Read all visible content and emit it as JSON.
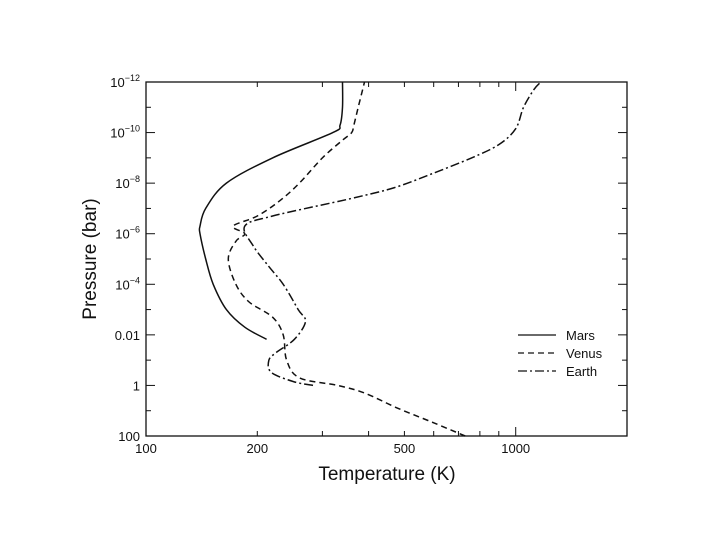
{
  "chart_data": {
    "type": "line",
    "title": "",
    "xlabel": "Temperature  (K)",
    "ylabel": "Pressure  (bar)",
    "x_scale": "log",
    "y_scale": "log",
    "xlim": [
      100,
      2000
    ],
    "ylim": [
      1e-12,
      100
    ],
    "y_inverted": true,
    "grid": false,
    "legend_position": "bottom-right",
    "x_ticks": [
      {
        "value": 100,
        "label": "100"
      },
      {
        "value": 200,
        "label": "200"
      },
      {
        "value": 500,
        "label": "500"
      },
      {
        "value": 1000,
        "label": "1000"
      }
    ],
    "y_ticks": [
      {
        "value": 1e-12,
        "base": "10",
        "exp": "−12"
      },
      {
        "value": 1e-10,
        "base": "10",
        "exp": "−10"
      },
      {
        "value": 1e-08,
        "base": "10",
        "exp": "−8"
      },
      {
        "value": 1e-06,
        "base": "10",
        "exp": "−6"
      },
      {
        "value": 0.0001,
        "base": "10",
        "exp": "−4"
      },
      {
        "value": 0.01,
        "base": "0.01",
        "exp": ""
      },
      {
        "value": 1,
        "base": "1",
        "exp": ""
      },
      {
        "value": 100,
        "base": "100",
        "exp": ""
      }
    ],
    "series": [
      {
        "name": "Mars",
        "dash": "solid",
        "points": [
          [
            212,
            0.015
          ],
          [
            185,
            0.005
          ],
          [
            165,
            0.001
          ],
          [
            152,
            0.0001
          ],
          [
            145,
            1e-05
          ],
          [
            140,
            1e-06
          ],
          [
            140,
            5e-07
          ],
          [
            145,
            1e-07
          ],
          [
            165,
            1e-08
          ],
          [
            220,
            1e-09
          ],
          [
            320,
            1e-10
          ],
          [
            335,
            5e-11
          ],
          [
            340,
            1e-11
          ],
          [
            340,
            1e-12
          ]
        ]
      },
      {
        "name": "Venus",
        "dash": "dashed",
        "points": [
          [
            730,
            100
          ],
          [
            600,
            30
          ],
          [
            480,
            8
          ],
          [
            390,
            2
          ],
          [
            330,
            1
          ],
          [
            260,
            0.5
          ],
          [
            240,
            0.1
          ],
          [
            235,
            0.01
          ],
          [
            220,
            0.002
          ],
          [
            190,
            0.0005
          ],
          [
            175,
            0.0001
          ],
          [
            167,
            1e-05
          ],
          [
            175,
            2e-06
          ],
          [
            185,
            1e-06
          ],
          [
            172,
            5e-07
          ],
          [
            200,
            2e-07
          ],
          [
            230,
            5e-08
          ],
          [
            260,
            1e-08
          ],
          [
            300,
            1e-09
          ],
          [
            340,
            2e-10
          ],
          [
            360,
            1e-10
          ],
          [
            365,
            5e-11
          ],
          [
            375,
            1e-11
          ],
          [
            390,
            1e-12
          ]
        ]
      },
      {
        "name": "Earth",
        "dash": "dashdot",
        "points": [
          [
            283,
            1
          ],
          [
            250,
            0.7
          ],
          [
            218,
            0.3
          ],
          [
            215,
            0.1
          ],
          [
            225,
            0.05
          ],
          [
            252,
            0.015
          ],
          [
            270,
            0.003
          ],
          [
            258,
            0.001
          ],
          [
            235,
            0.0001
          ],
          [
            215,
            2e-05
          ],
          [
            195,
            3e-06
          ],
          [
            185,
            5e-07
          ],
          [
            220,
            2e-07
          ],
          [
            360,
            4e-08
          ],
          [
            470,
            1.5e-08
          ],
          [
            600,
            4e-09
          ],
          [
            760,
            1e-09
          ],
          [
            900,
            3e-10
          ],
          [
            1000,
            7e-11
          ],
          [
            1050,
            1e-11
          ],
          [
            1120,
            2e-12
          ],
          [
            1170,
            1e-12
          ]
        ]
      }
    ]
  }
}
